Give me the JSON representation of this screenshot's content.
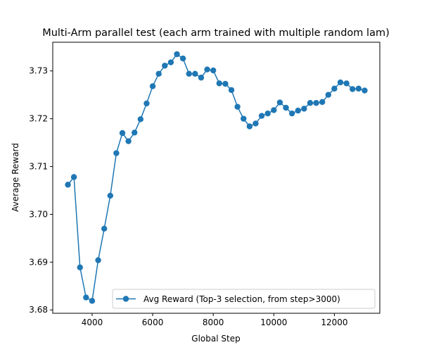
{
  "chart_data": {
    "type": "line",
    "title": "Multi-Arm parallel test (each arm trained with multiple random lam)",
    "xlabel": "Global Step",
    "ylabel": "Average Reward",
    "xlim": [
      2700,
      13500
    ],
    "ylim": [
      3.6793,
      3.736
    ],
    "xticks": [
      4000,
      6000,
      8000,
      10000,
      12000
    ],
    "xtick_labels": [
      "4000",
      "6000",
      "8000",
      "10000",
      "12000"
    ],
    "yticks": [
      3.68,
      3.69,
      3.7,
      3.71,
      3.72,
      3.73
    ],
    "ytick_labels": [
      "3.68",
      "3.69",
      "3.70",
      "3.71",
      "3.72",
      "3.73"
    ],
    "grid": false,
    "legend_position": "lower-right",
    "series": [
      {
        "name": "Avg Reward (Top-3 selection, from step>3000)",
        "color": "#1f77b4",
        "marker": "circle",
        "x": [
          3200,
          3400,
          3600,
          3800,
          4000,
          4200,
          4400,
          4600,
          4800,
          5000,
          5200,
          5400,
          5600,
          5800,
          6000,
          6200,
          6400,
          6600,
          6800,
          7000,
          7200,
          7400,
          7600,
          7800,
          8000,
          8200,
          8400,
          8600,
          8800,
          9000,
          9200,
          9400,
          9600,
          9800,
          10000,
          10200,
          10400,
          10600,
          10800,
          11000,
          11200,
          11400,
          11600,
          11800,
          12000,
          12200,
          12400,
          12600,
          12800,
          13000
        ],
        "y": [
          3.7062,
          3.7078,
          3.6889,
          3.6826,
          3.6819,
          3.6904,
          3.697,
          3.7039,
          3.7128,
          3.717,
          3.7153,
          3.7171,
          3.7199,
          3.7232,
          3.7268,
          3.7294,
          3.7311,
          3.7318,
          3.7335,
          3.7326,
          3.7294,
          3.7294,
          3.7286,
          3.7303,
          3.7301,
          3.7274,
          3.7273,
          3.726,
          3.7225,
          3.72,
          3.7184,
          3.719,
          3.7206,
          3.7211,
          3.7218,
          3.7234,
          3.7223,
          3.7211,
          3.7217,
          3.7221,
          3.7233,
          3.7233,
          3.7235,
          3.725,
          3.7263,
          3.7276,
          3.7274,
          3.7262,
          3.7263,
          3.7259
        ]
      }
    ]
  }
}
